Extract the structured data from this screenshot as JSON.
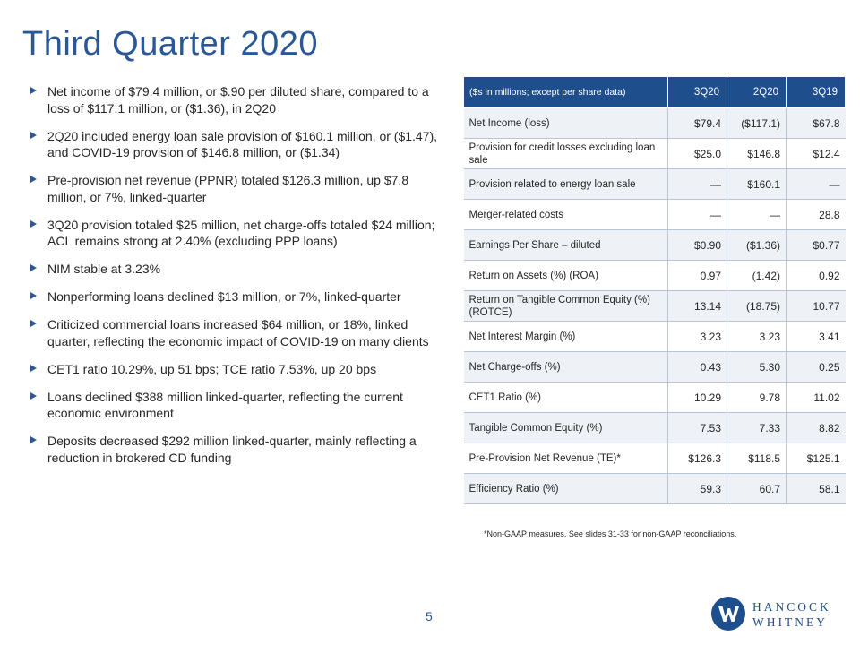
{
  "title": "Third Quarter 2020",
  "bullets": [
    "Net income of $79.4 million, or $.90 per diluted share, compared to a loss of $117.1 million, or ($1.36), in 2Q20",
    "2Q20 included energy loan sale provision of $160.1 million, or ($1.47), and COVID-19 provision of $146.8 million, or ($1.34)",
    "Pre-provision net revenue (PPNR) totaled $126.3 million, up $7.8 million, or 7%, linked-quarter",
    "3Q20 provision totaled $25 million, net charge-offs totaled $24 million; ACL remains strong at 2.40% (excluding PPP loans)",
    "NIM stable at 3.23%",
    "Nonperforming loans declined $13 million, or 7%, linked-quarter",
    "Criticized commercial loans increased $64 million, or 18%, linked quarter, reflecting the economic impact of COVID-19 on many clients",
    "CET1 ratio 10.29%, up 51 bps; TCE ratio 7.53%, up 20 bps",
    "Loans declined $388 million linked-quarter, reflecting the current economic environment",
    "Deposits decreased $292 million linked-quarter, mainly reflecting a reduction in brokered CD funding"
  ],
  "table": {
    "header": {
      "label": "($s in millions; except per share data)",
      "col1": "3Q20",
      "col2": "2Q20",
      "col3": "3Q19"
    },
    "rows": [
      {
        "label": "Net Income (loss)",
        "q3_20": "$79.4",
        "q2_20": "($117.1)",
        "q3_19": "$67.8"
      },
      {
        "label": "Provision for credit losses excluding loan sale",
        "q3_20": "$25.0",
        "q2_20": "$146.8",
        "q3_19": "$12.4"
      },
      {
        "label": "Provision related to energy loan sale",
        "q3_20": "—",
        "q2_20": "$160.1",
        "q3_19": "—"
      },
      {
        "label": "Merger-related costs",
        "q3_20": "—",
        "q2_20": "—",
        "q3_19": "28.8"
      },
      {
        "label": "Earnings Per Share – diluted",
        "q3_20": "$0.90",
        "q2_20": "($1.36)",
        "q3_19": "$0.77"
      },
      {
        "label": "Return on Assets (%) (ROA)",
        "q3_20": "0.97",
        "q2_20": "(1.42)",
        "q3_19": "0.92"
      },
      {
        "label": "Return on Tangible Common Equity (%) (ROTCE)",
        "q3_20": "13.14",
        "q2_20": "(18.75)",
        "q3_19": "10.77"
      },
      {
        "label": "Net Interest Margin (%)",
        "q3_20": "3.23",
        "q2_20": "3.23",
        "q3_19": "3.41"
      },
      {
        "label": "Net Charge-offs (%)",
        "q3_20": "0.43",
        "q2_20": "5.30",
        "q3_19": "0.25"
      },
      {
        "label": "CET1 Ratio (%)",
        "q3_20": "10.29",
        "q2_20": "9.78",
        "q3_19": "11.02"
      },
      {
        "label": "Tangible Common Equity (%)",
        "q3_20": "7.53",
        "q2_20": "7.33",
        "q3_19": "8.82"
      },
      {
        "label": "Pre-Provision Net Revenue (TE)*",
        "q3_20": "$126.3",
        "q2_20": "$118.5",
        "q3_19": "$125.1"
      },
      {
        "label": "Efficiency Ratio (%)",
        "q3_20": "59.3",
        "q2_20": "60.7",
        "q3_19": "58.1"
      }
    ]
  },
  "footnote": "*Non-GAAP measures. See slides 31-33 for non-GAAP reconciliations.",
  "page_number": "5",
  "logo": {
    "line1": "HANCOCK",
    "line2": "WHITNEY",
    "icon": "hancock-whitney-w-logo",
    "color": "#1f4e8c"
  },
  "colors": {
    "accent": "#2a5896",
    "header_bg": "#1f4e8c",
    "row_alt_bg": "#eef1f5"
  }
}
